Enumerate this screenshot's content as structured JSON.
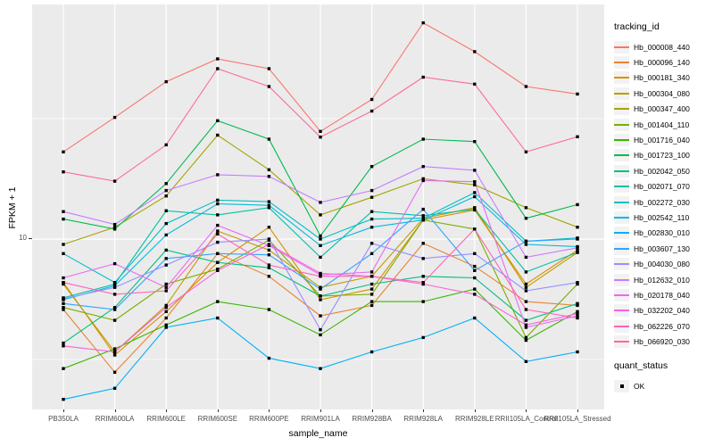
{
  "chart_data": {
    "type": "line",
    "title": "",
    "xlabel": "sample_name",
    "ylabel": "FPKM + 1",
    "yscale": "log10",
    "ylim": [
      2,
      90
    ],
    "ytick_labels": [
      "10"
    ],
    "grid": true,
    "panel_bg": "#EBEBEB",
    "grid_color": "#FFFFFF",
    "marker": {
      "shape": "square",
      "color": "#000000",
      "size": 3.4
    },
    "legend": {
      "position": "right",
      "series_title": "tracking_id",
      "status_title": "quant_status",
      "status_label": "OK",
      "key_fill": "#F2F2F2"
    },
    "categories": [
      "PB350LA",
      "RRIM600LA",
      "RRIM600LE",
      "RRIM600SE",
      "RRIM600PE",
      "RRIM901LA",
      "RRIM928BA",
      "RRIM928LA",
      "RRIM928LE",
      "RRII105LA_Control",
      "RRII105LA_Stressed"
    ],
    "series": [
      {
        "name": "Hb_000008_440",
        "color": "#F8766D",
        "values": [
          23,
          32,
          45,
          56,
          51,
          28,
          38,
          79,
          60,
          43,
          40
        ]
      },
      {
        "name": "Hb_000096_140",
        "color": "#EA8331",
        "values": [
          5.1,
          2.8,
          4.7,
          8.7,
          7.0,
          4.8,
          5.3,
          9.6,
          7.7,
          5.5,
          5.3
        ]
      },
      {
        "name": "Hb_000181_340",
        "color": "#D89000",
        "values": [
          6.6,
          3.3,
          5.0,
          8.0,
          11.2,
          5.6,
          6.2,
          12.0,
          13.2,
          6.5,
          9.0
        ]
      },
      {
        "name": "Hb_000304_080",
        "color": "#C09B00",
        "values": [
          6.5,
          3.4,
          5.3,
          10.8,
          9.0,
          6.3,
          7.0,
          12.2,
          13.5,
          6.3,
          8.8
        ]
      },
      {
        "name": "Hb_000347_400",
        "color": "#A3A500",
        "values": [
          9.5,
          11.2,
          15.1,
          27,
          19.4,
          12.6,
          14.9,
          17.8,
          16.8,
          13.5,
          11.2
        ]
      },
      {
        "name": "Hb_001404_110",
        "color": "#7CAE00",
        "values": [
          5.2,
          4.6,
          6.5,
          7.5,
          9.9,
          5.8,
          5.9,
          12.0,
          11.0,
          3.9,
          6.5
        ]
      },
      {
        "name": "Hb_001716_040",
        "color": "#39B600",
        "values": [
          2.9,
          3.5,
          4.4,
          5.5,
          5.1,
          4.0,
          5.5,
          5.5,
          6.2,
          3.8,
          5.0
        ]
      },
      {
        "name": "Hb_001723_100",
        "color": "#00BB4E",
        "values": [
          12.1,
          11.0,
          17,
          31,
          26,
          10.3,
          20,
          26,
          25.4,
          12.2,
          13.9
        ]
      },
      {
        "name": "Hb_002042_050",
        "color": "#00BF7D",
        "values": [
          3.7,
          5.2,
          9.0,
          8.0,
          7.6,
          5.8,
          6.5,
          7.0,
          6.9,
          4.6,
          5.4
        ]
      },
      {
        "name": "Hb_002071_070",
        "color": "#00C1A3",
        "values": [
          5.7,
          6.5,
          13.1,
          12.6,
          13.5,
          8.4,
          13.0,
          12.5,
          13.3,
          7.3,
          8.8
        ]
      },
      {
        "name": "Hb_002272_030",
        "color": "#00BFC4",
        "values": [
          8.7,
          6.6,
          11.6,
          14.5,
          14.3,
          10.0,
          12.1,
          12.2,
          15.6,
          9.8,
          10.1
        ]
      },
      {
        "name": "Hb_002542_110",
        "color": "#00BAE0",
        "values": [
          5.6,
          6.4,
          10.4,
          14.0,
          13.8,
          9.4,
          11.2,
          12.0,
          15.0,
          9.5,
          9.3
        ]
      },
      {
        "name": "Hb_002830_010",
        "color": "#00B0F6",
        "values": [
          2.16,
          2.4,
          4.3,
          4.7,
          3.2,
          2.9,
          3.4,
          3.9,
          4.7,
          3.1,
          3.4
        ]
      },
      {
        "name": "Hb_003607_130",
        "color": "#35A2FF",
        "values": [
          5.4,
          5.1,
          8.3,
          8.7,
          8.6,
          6.2,
          8.7,
          13.3,
          7.4,
          9.8,
          10.0
        ]
      },
      {
        "name": "Hb_004030_080",
        "color": "#9590FF",
        "values": [
          5.65,
          6.3,
          7.8,
          9.7,
          10.0,
          4.2,
          9.6,
          8.3,
          8.7,
          6.1,
          6.6
        ]
      },
      {
        "name": "Hb_012632_010",
        "color": "#C77CFF",
        "values": [
          13.0,
          11.5,
          15.9,
          18.5,
          18.2,
          14.2,
          15.9,
          20,
          19.3,
          8.4,
          9.2
        ]
      },
      {
        "name": "Hb_020178_040",
        "color": "#E76BF3",
        "values": [
          6.9,
          7.9,
          6.3,
          11.4,
          9.4,
          7.1,
          7.3,
          17.5,
          17.3,
          4.3,
          4.8
        ]
      },
      {
        "name": "Hb_032202_040",
        "color": "#FA62DB",
        "values": [
          3.6,
          3.4,
          5.2,
          7.4,
          9.5,
          7.2,
          7.0,
          6.5,
          5.9,
          4.4,
          4.9
        ]
      },
      {
        "name": "Hb_062226_070",
        "color": "#FF62BC",
        "values": [
          6.6,
          5.9,
          6.1,
          10.5,
          7.8,
          7.0,
          7.0,
          6.6,
          11.0,
          5.1,
          4.7
        ]
      },
      {
        "name": "Hb_066920_030",
        "color": "#FF6A98",
        "values": [
          19,
          17.4,
          24.6,
          51,
          43,
          26.5,
          34,
          47,
          44,
          23,
          26.6
        ]
      }
    ]
  }
}
